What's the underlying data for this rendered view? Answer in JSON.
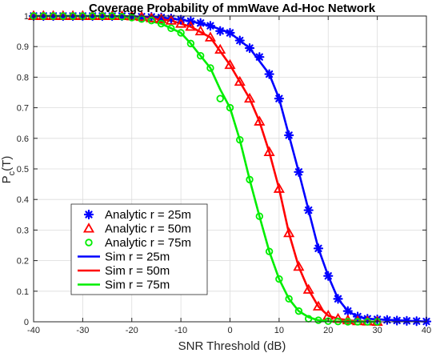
{
  "chart_data": {
    "type": "line",
    "title": "Coverage Probability of mmWave Ad-Hoc Network",
    "xlabel": "SNR Threshold (dB)",
    "ylabel_main": "P",
    "ylabel_sub": "c",
    "ylabel_tail": "(T)",
    "xlim": [
      -40,
      40
    ],
    "ylim": [
      0,
      1
    ],
    "xticks": [
      -40,
      -30,
      -20,
      -10,
      0,
      10,
      20,
      30,
      40
    ],
    "yticks": [
      0,
      0.1,
      0.2,
      0.3,
      0.4,
      0.5,
      0.6,
      0.7,
      0.8,
      0.9,
      1
    ],
    "grid": true,
    "legend_position": "lower-left",
    "colors": {
      "r25": "#0000ff",
      "r50": "#ff0000",
      "r75": "#00ee00"
    },
    "series": [
      {
        "name": "Analytic r = 25m",
        "kind": "marker",
        "marker": "asterisk",
        "color": "#0000ff",
        "x": [
          -40,
          -38,
          -36,
          -34,
          -32,
          -30,
          -28,
          -26,
          -24,
          -22,
          -20,
          -18,
          -16,
          -14,
          -12,
          -10,
          -8,
          -6,
          -4,
          -2,
          0,
          2,
          4,
          6,
          8,
          10,
          12,
          14,
          16,
          18,
          20,
          22,
          24,
          26,
          28,
          30,
          32,
          34,
          36,
          38,
          40
        ],
        "y": [
          1,
          1,
          1,
          1,
          1,
          1,
          1,
          1,
          1,
          1,
          0.999,
          0.998,
          0.997,
          0.995,
          0.992,
          0.988,
          0.983,
          0.977,
          0.968,
          0.951,
          0.945,
          0.92,
          0.895,
          0.866,
          0.81,
          0.73,
          0.61,
          0.49,
          0.365,
          0.24,
          0.15,
          0.075,
          0.035,
          0.017,
          0.01,
          0.008,
          0.006,
          0.004,
          0.003,
          0.002,
          0.001
        ]
      },
      {
        "name": "Analytic r = 50m",
        "kind": "marker",
        "marker": "triangle",
        "color": "#ff0000",
        "x": [
          -40,
          -38,
          -36,
          -34,
          -32,
          -30,
          -28,
          -26,
          -24,
          -22,
          -20,
          -18,
          -16,
          -14,
          -12,
          -10,
          -8,
          -6,
          -4,
          -2,
          0,
          2,
          4,
          6,
          8,
          10,
          12,
          14,
          16,
          18,
          20,
          22,
          24,
          26,
          28,
          30
        ],
        "y": [
          1,
          1,
          1,
          1,
          1,
          1,
          1,
          1,
          1,
          1,
          0.999,
          0.997,
          0.993,
          0.99,
          0.985,
          0.975,
          0.965,
          0.95,
          0.93,
          0.89,
          0.84,
          0.785,
          0.73,
          0.655,
          0.555,
          0.435,
          0.29,
          0.18,
          0.105,
          0.05,
          0.02,
          0.01,
          0.005,
          0.002,
          0.001,
          0.0
        ]
      },
      {
        "name": "Analytic r = 75m",
        "kind": "marker",
        "marker": "circle",
        "color": "#00ee00",
        "x": [
          -40,
          -38,
          -36,
          -34,
          -32,
          -30,
          -28,
          -26,
          -24,
          -22,
          -20,
          -18,
          -16,
          -14,
          -12,
          -10,
          -8,
          -6,
          -4,
          -2,
          0,
          2,
          4,
          6,
          8,
          10,
          12,
          14,
          16,
          18,
          20,
          22,
          24,
          26,
          28,
          30
        ],
        "y": [
          1,
          1,
          1,
          1,
          1,
          1,
          1,
          1,
          1,
          0.998,
          0.995,
          0.99,
          0.985,
          0.975,
          0.96,
          0.945,
          0.91,
          0.87,
          0.83,
          0.73,
          0.7,
          0.595,
          0.465,
          0.345,
          0.23,
          0.14,
          0.075,
          0.035,
          0.01,
          0.005,
          0.002,
          0.001,
          0.0,
          0.0,
          0.0,
          0.0
        ]
      },
      {
        "name": "Sim r = 25m",
        "kind": "line",
        "color": "#0000ff",
        "x": [
          -40,
          -30,
          -20,
          -16,
          -12,
          -8,
          -4,
          0,
          4,
          8,
          10,
          12,
          14,
          16,
          18,
          20,
          22,
          24,
          26,
          28,
          30,
          34,
          38,
          40
        ],
        "y": [
          1,
          1,
          0.999,
          0.997,
          0.992,
          0.983,
          0.968,
          0.945,
          0.895,
          0.81,
          0.73,
          0.61,
          0.49,
          0.365,
          0.24,
          0.15,
          0.075,
          0.035,
          0.017,
          0.01,
          0.008,
          0.005,
          0.002,
          0.001
        ]
      },
      {
        "name": "Sim r = 50m",
        "kind": "line",
        "color": "#ff0000",
        "x": [
          -40,
          -30,
          -20,
          -16,
          -12,
          -8,
          -4,
          0,
          2,
          4,
          6,
          8,
          10,
          12,
          14,
          16,
          18,
          20,
          22,
          24,
          26,
          28,
          30
        ],
        "y": [
          1,
          1,
          0.999,
          0.993,
          0.985,
          0.965,
          0.93,
          0.84,
          0.785,
          0.73,
          0.655,
          0.555,
          0.435,
          0.29,
          0.18,
          0.105,
          0.05,
          0.02,
          0.01,
          0.005,
          0.002,
          0.001,
          0.0
        ]
      },
      {
        "name": "Sim r = 75m",
        "kind": "line",
        "color": "#00ee00",
        "x": [
          -40,
          -30,
          -22,
          -18,
          -14,
          -10,
          -8,
          -6,
          -4,
          -2,
          0,
          2,
          4,
          6,
          8,
          10,
          12,
          14,
          16,
          18,
          20,
          22,
          24,
          30
        ],
        "y": [
          1,
          1,
          0.998,
          0.99,
          0.975,
          0.945,
          0.91,
          0.87,
          0.83,
          0.76,
          0.7,
          0.595,
          0.465,
          0.345,
          0.23,
          0.14,
          0.075,
          0.035,
          0.015,
          0.005,
          0.002,
          0.001,
          0.0,
          0.0
        ]
      }
    ]
  }
}
